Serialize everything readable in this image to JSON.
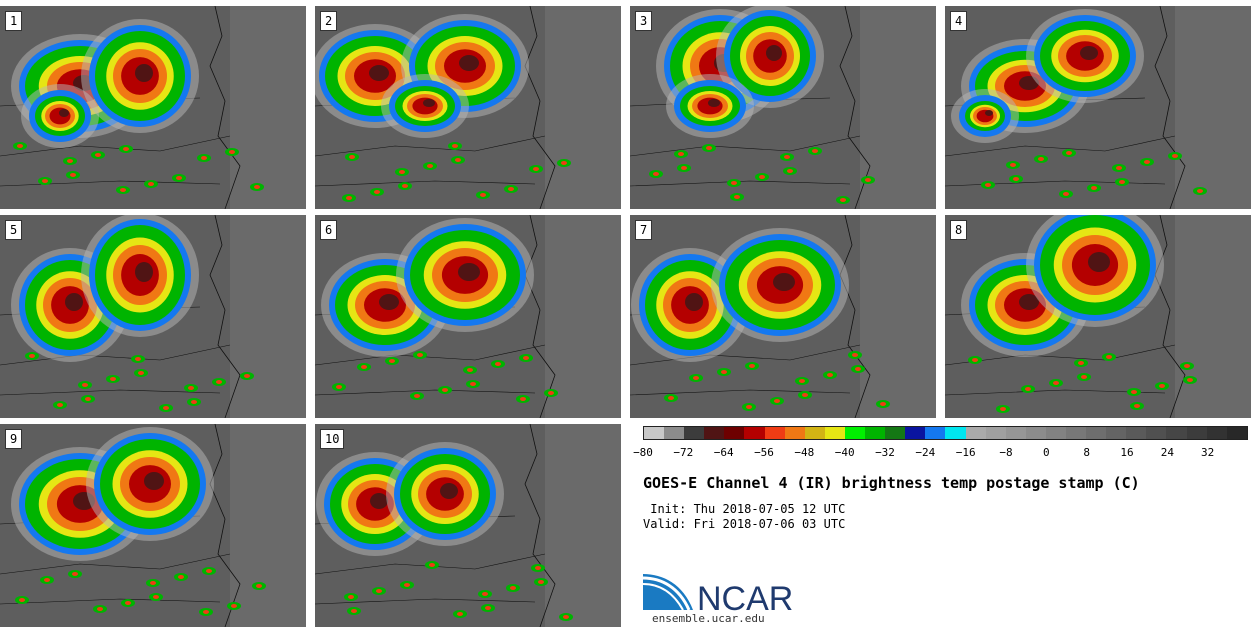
{
  "panels": [
    {
      "label": "1"
    },
    {
      "label": "2"
    },
    {
      "label": "3"
    },
    {
      "label": "4"
    },
    {
      "label": "5"
    },
    {
      "label": "6"
    },
    {
      "label": "7"
    },
    {
      "label": "8"
    },
    {
      "label": "9"
    },
    {
      "label": "10"
    }
  ],
  "colorbar": {
    "colors": [
      "#c8c8c8",
      "#8c8c8c",
      "#3c3c3c",
      "#501414",
      "#6e0000",
      "#b40000",
      "#f03c14",
      "#f07814",
      "#d2b414",
      "#e6e614",
      "#00f000",
      "#00b400",
      "#147814",
      "#0a14a0",
      "#1478f0",
      "#00e6f0",
      "#aaaaaa",
      "#a0a0a0",
      "#969696",
      "#8c8c8c",
      "#828282",
      "#787878",
      "#6e6e6e",
      "#646464",
      "#5a5a5a",
      "#505050",
      "#464646",
      "#3c3c3c",
      "#323232",
      "#282828"
    ],
    "tick_labels": [
      "−80",
      "−72",
      "−64",
      "−56",
      "−48",
      "−40",
      "−32",
      "−24",
      "−16",
      "−8",
      "0",
      "8",
      "16",
      "24",
      "32"
    ]
  },
  "title": "GOES-E Channel 4 (IR) brightness temp postage stamp (C)",
  "init": " Init: Thu 2018-07-05 12 UTC",
  "valid": "Valid: Fri 2018-07-06 03 UTC",
  "logo": {
    "text": "NCAR"
  },
  "url": "ensemble.ucar.edu"
}
